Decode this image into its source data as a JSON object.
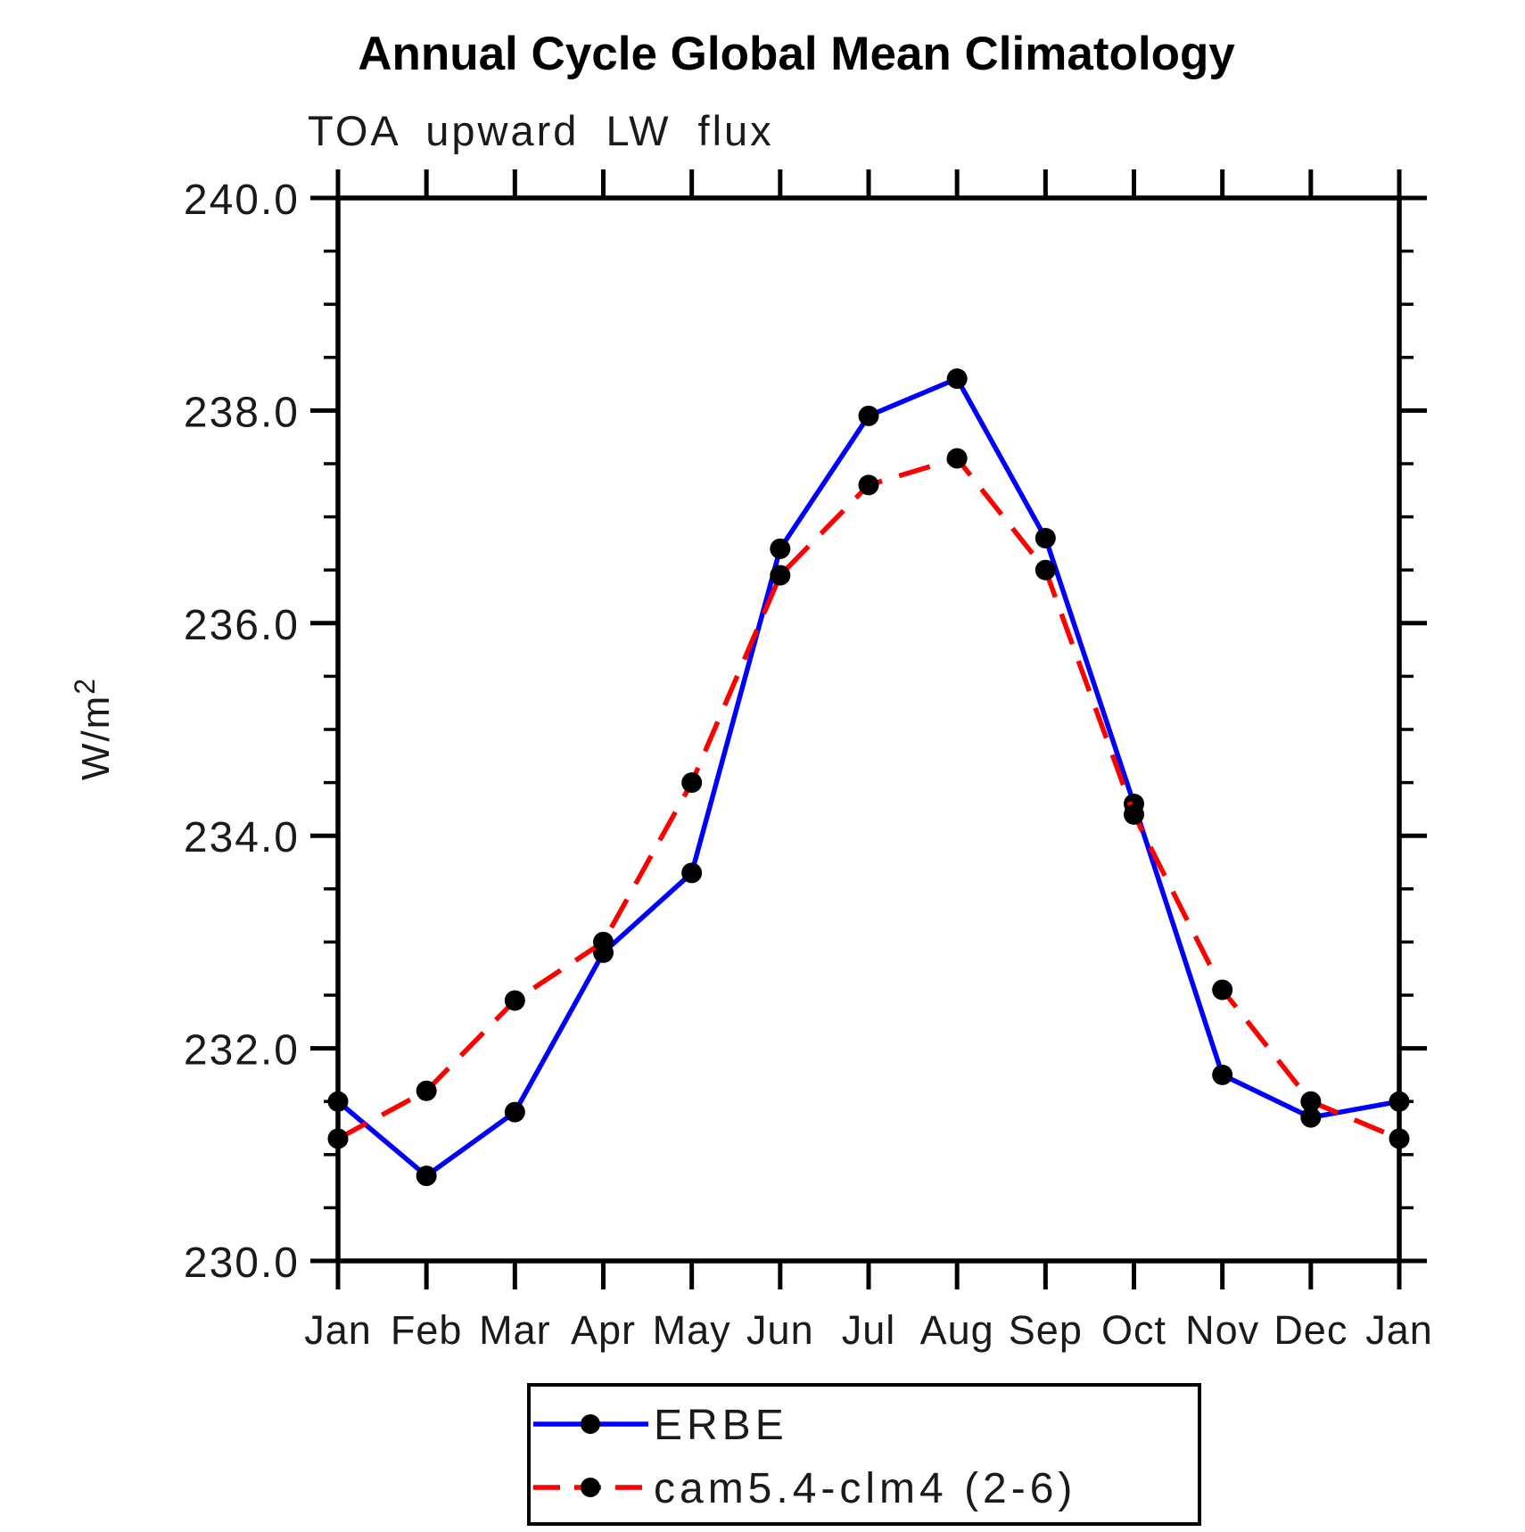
{
  "page": {
    "background": "#ffffff"
  },
  "chart_data": {
    "type": "line",
    "title": "Annual Cycle Global Mean Climatology",
    "subtitle": "TOA upward LW flux",
    "ylabel": {
      "base": "W/m",
      "exponent": "2"
    },
    "categories": [
      "Jan",
      "Feb",
      "Mar",
      "Apr",
      "May",
      "Jun",
      "Jul",
      "Aug",
      "Sep",
      "Oct",
      "Nov",
      "Dec",
      "Jan"
    ],
    "series": [
      {
        "name": "ERBE",
        "color": "#0000ff",
        "line_style": "solid",
        "values": [
          231.5,
          230.8,
          231.4,
          232.9,
          233.65,
          236.7,
          237.95,
          238.3,
          236.8,
          234.3,
          231.75,
          231.35,
          231.5
        ]
      },
      {
        "name": "cam5.4-clm4 (2-6)",
        "color": "#ff0000",
        "line_style": "dashed",
        "values": [
          231.15,
          231.6,
          232.45,
          233.0,
          234.5,
          236.45,
          237.3,
          237.55,
          236.5,
          234.2,
          232.55,
          231.5,
          231.15
        ]
      }
    ],
    "marker": {
      "shape": "circle",
      "color": "#000000"
    },
    "axis_color": "#000000",
    "ylim": [
      230.0,
      240.0
    ],
    "ytick_major": [
      230.0,
      232.0,
      234.0,
      236.0,
      238.0,
      240.0
    ],
    "ytick_labels": [
      "230.0",
      "232.0",
      "234.0",
      "236.0",
      "238.0",
      "240.0"
    ],
    "ytick_minor_step": 0.5,
    "grid": "off",
    "legend_position": "bottom-center"
  }
}
